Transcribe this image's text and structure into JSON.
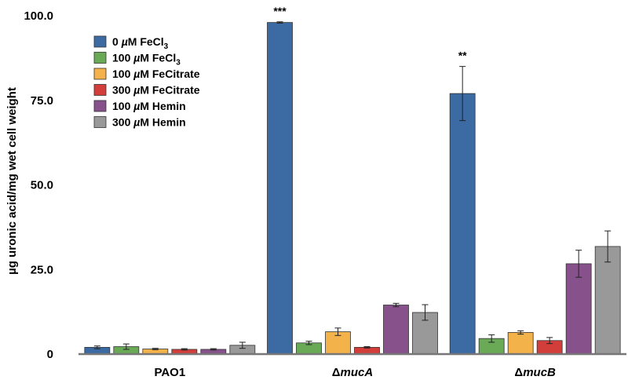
{
  "chart_data": {
    "type": "bar",
    "title": "",
    "xlabel": "",
    "ylabel": "µg uronic acid/mg wet cell weight",
    "ylim": [
      0,
      100
    ],
    "yticks": [
      "0",
      "25.0",
      "50.0",
      "75.0",
      "100.0"
    ],
    "ytick_values": [
      0,
      25,
      50,
      75,
      100
    ],
    "categories": [
      {
        "prefix": "",
        "italic": "",
        "plain": "PAO1"
      },
      {
        "prefix": "Δ",
        "italic": "mucA",
        "plain": ""
      },
      {
        "prefix": "Δ",
        "italic": "mucB",
        "plain": ""
      }
    ],
    "legend_position": "top-left",
    "series": [
      {
        "name": "0 µM FeCl3",
        "label_main": "0 ",
        "label_mu": "µ",
        "label_rest": "M FeCl",
        "label_sub": "3",
        "color": "#3c6aa2",
        "values": [
          2.0,
          98.0,
          77.0
        ],
        "errors": [
          0.4,
          0.2,
          8.0
        ]
      },
      {
        "name": "100 µM FeCl3",
        "label_main": "100 ",
        "label_mu": "µ",
        "label_rest": "M FeCl",
        "label_sub": "3",
        "color": "#6aaa56",
        "values": [
          2.2,
          3.3,
          4.6
        ],
        "errors": [
          0.8,
          0.5,
          1.1
        ]
      },
      {
        "name": "100 µM FeCitrate",
        "label_main": "100 ",
        "label_mu": "µ",
        "label_rest": "M FeCitrate",
        "label_sub": "",
        "color": "#f3b24a",
        "values": [
          1.5,
          6.6,
          6.4
        ],
        "errors": [
          0.2,
          1.1,
          0.5
        ]
      },
      {
        "name": "300 µM FeCitrate",
        "label_main": "300 ",
        "label_mu": "µ",
        "label_rest": "M FeCitrate",
        "label_sub": "",
        "color": "#d33e3b",
        "values": [
          1.4,
          2.0,
          4.0
        ],
        "errors": [
          0.2,
          0.2,
          0.9
        ]
      },
      {
        "name": "100 µM Hemin",
        "label_main": "100 ",
        "label_mu": "µ",
        "label_rest": "M Hemin",
        "label_sub": "",
        "color": "#87518c",
        "values": [
          1.4,
          14.5,
          26.7
        ],
        "errors": [
          0.2,
          0.5,
          4.0
        ]
      },
      {
        "name": "300 µM Hemin",
        "label_main": "300 ",
        "label_mu": "µ",
        "label_rest": "M Hemin",
        "label_sub": "",
        "color": "#999999",
        "values": [
          2.6,
          12.3,
          31.8
        ],
        "errors": [
          0.9,
          2.3,
          4.6
        ]
      }
    ],
    "annotations": [
      {
        "text": "***",
        "category_index": 1,
        "series_index": 0
      },
      {
        "text": "**",
        "category_index": 2,
        "series_index": 0
      }
    ]
  }
}
